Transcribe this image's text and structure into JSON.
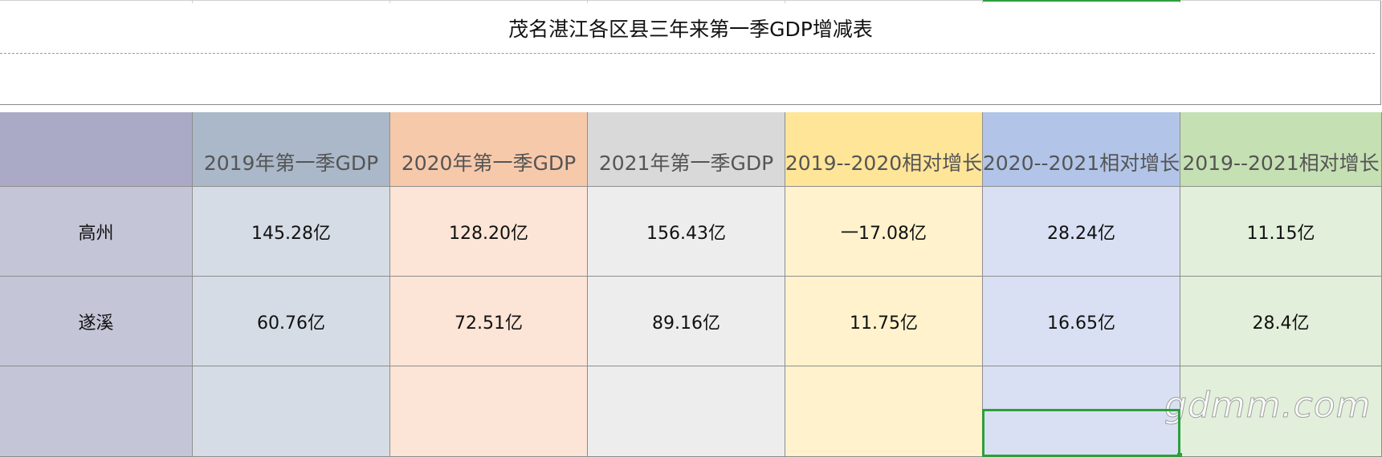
{
  "title": "茂名湛江各区县三年来第一季GDP增减表",
  "headers": [
    "",
    "2019年第一季GDP",
    "2020年第一季GDP",
    "2021年第一季GDP",
    "2019--2020相对增长",
    "2020--2021相对增长",
    "2019--2021相对增长"
  ],
  "rows": [
    [
      "高州",
      "145.28亿",
      "128.20亿",
      "156.43亿",
      "一17.08亿",
      "28.24亿",
      "11.15亿"
    ],
    [
      "遂溪",
      "60.76亿",
      "72.51亿",
      "89.16亿",
      "11.75亿",
      "16.65亿",
      "28.4亿"
    ],
    [
      "",
      "",
      "",
      "",
      "",
      "",
      ""
    ]
  ],
  "colors": {
    "header": [
      "#aaaac6",
      "#aab8c9",
      "#f7c9ab",
      "#d9d9d9",
      "#ffe598",
      "#b2c5e8",
      "#c5e0b3"
    ],
    "body": [
      "#c5c5d8",
      "#d5dce5",
      "#fce4d6",
      "#ededed",
      "#fff2cc",
      "#d9e0f3",
      "#e2efda"
    ],
    "selection": "#2e9e3c"
  },
  "watermark": "gdmm.com"
}
